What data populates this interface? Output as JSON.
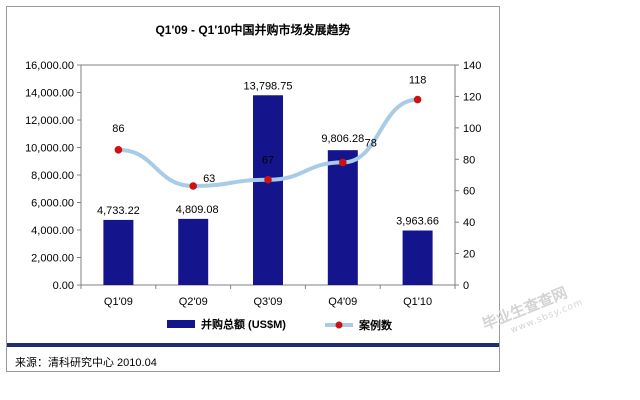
{
  "chart_data": {
    "type": "bar",
    "title": "Q1'09 - Q1'10中国并购市场发展趋势",
    "categories": [
      "Q1'09",
      "Q2'09",
      "Q3'09",
      "Q4'09",
      "Q1'10"
    ],
    "series": [
      {
        "name": "并购总额 (US$M)",
        "type": "bar",
        "axis": "left",
        "values": [
          4733.22,
          4809.08,
          13798.75,
          9806.28,
          3963.66
        ],
        "labels": [
          "4,733.22",
          "4,809.08",
          "13,798.75",
          "9,806.28",
          "3,963.66"
        ],
        "color": "#14148c"
      },
      {
        "name": "案例数",
        "type": "line",
        "axis": "right",
        "values": [
          86,
          63,
          67,
          78,
          118
        ],
        "labels": [
          "86",
          "63",
          "67",
          "78",
          "118"
        ],
        "color": "#a8cbe8",
        "marker_color": "#cc1111"
      }
    ],
    "y_left": {
      "min": 0,
      "max": 16000,
      "ticks": [
        "0.00",
        "2,000.00",
        "4,000.00",
        "6,000.00",
        "8,000.00",
        "10,000.00",
        "12,000.00",
        "14,000.00",
        "16,000.00"
      ]
    },
    "y_right": {
      "min": 0,
      "max": 140,
      "ticks": [
        "0",
        "20",
        "40",
        "60",
        "80",
        "100",
        "120",
        "140"
      ]
    },
    "grid": false,
    "legend_position": "bottom"
  },
  "source_text": "来源：清科研究中心 2010.04",
  "watermark": {
    "main": "毕业生查查网",
    "sub": "www.sbsy.com"
  }
}
